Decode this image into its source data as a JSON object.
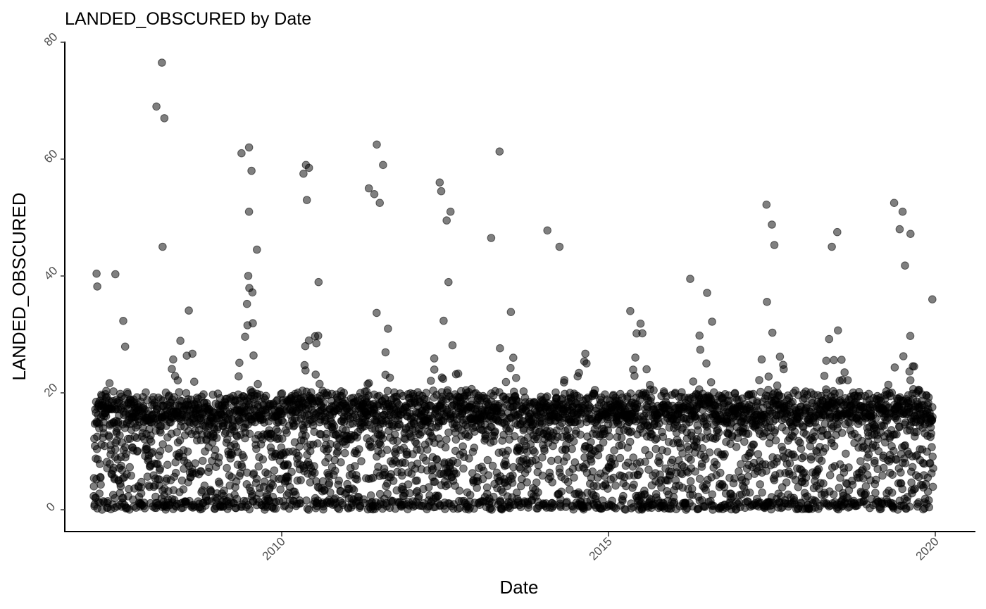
{
  "chart_data": {
    "type": "scatter",
    "title": "LANDED_OBSCURED by Date",
    "xlabel": "Date",
    "ylabel": "LANDED_OBSCURED",
    "x_ticks": [
      "2010",
      "2015",
      "2020"
    ],
    "y_ticks": [
      "0",
      "20",
      "40",
      "60",
      "80"
    ],
    "xlim": [
      "2007-02-01",
      "2020-07-01"
    ],
    "ylim": [
      -4,
      80
    ],
    "grid": false,
    "legend": "none",
    "point_color": "#000000",
    "point_opacity": 0.5,
    "points": [
      [
        "2008-03-01",
        76.5
      ],
      [
        "2008-02-01",
        69
      ],
      [
        "2008-03-15",
        67
      ],
      [
        "2008-03-05",
        45
      ],
      [
        "2009-05-20",
        61
      ],
      [
        "2009-07-01",
        62
      ],
      [
        "2009-07-15",
        58
      ],
      [
        "2009-07-01",
        51
      ],
      [
        "2009-08-15",
        44.5
      ],
      [
        "2010-05-01",
        57.5
      ],
      [
        "2010-05-15",
        59
      ],
      [
        "2010-06-01",
        58.5
      ],
      [
        "2010-05-20",
        53
      ],
      [
        "2011-06-15",
        62.5
      ],
      [
        "2011-07-20",
        59
      ],
      [
        "2011-05-01",
        55
      ],
      [
        "2011-06-01",
        54
      ],
      [
        "2011-07-01",
        52.5
      ],
      [
        "2012-06-01",
        56
      ],
      [
        "2012-06-10",
        54.5
      ],
      [
        "2012-08-01",
        51
      ],
      [
        "2012-07-10",
        49.5
      ],
      [
        "2013-05-01",
        61.3
      ],
      [
        "2014-01-25",
        47.8
      ],
      [
        "2014-04-01",
        45
      ],
      [
        "2013-03-15",
        46.5
      ],
      [
        "2017-06-01",
        52.2
      ],
      [
        "2017-07-01",
        48.8
      ],
      [
        "2017-07-15",
        45.3
      ],
      [
        "2018-07-01",
        47.5
      ],
      [
        "2018-06-01",
        45
      ],
      [
        "2019-05-15",
        52.5
      ],
      [
        "2019-07-01",
        51
      ],
      [
        "2019-08-15",
        47.2
      ],
      [
        "2019-06-15",
        48
      ],
      [
        "2007-03-01",
        40.4
      ],
      [
        "2007-03-05",
        38.2
      ],
      [
        "2007-06-15",
        40.3
      ],
      [
        "2019-12-15",
        36
      ],
      [
        "2016-04-01",
        39.5
      ],
      [
        "2015-05-01",
        34
      ]
    ],
    "bulk_series": {
      "x_range": [
        "2007-02-15",
        "2019-12-20"
      ],
      "y_min": 0,
      "band_y": [
        15,
        20
      ],
      "seasonal_peak_y": [
        40,
        40,
        42,
        47,
        48,
        45,
        45,
        38,
        33,
        38,
        40,
        42,
        44
      ]
    }
  }
}
